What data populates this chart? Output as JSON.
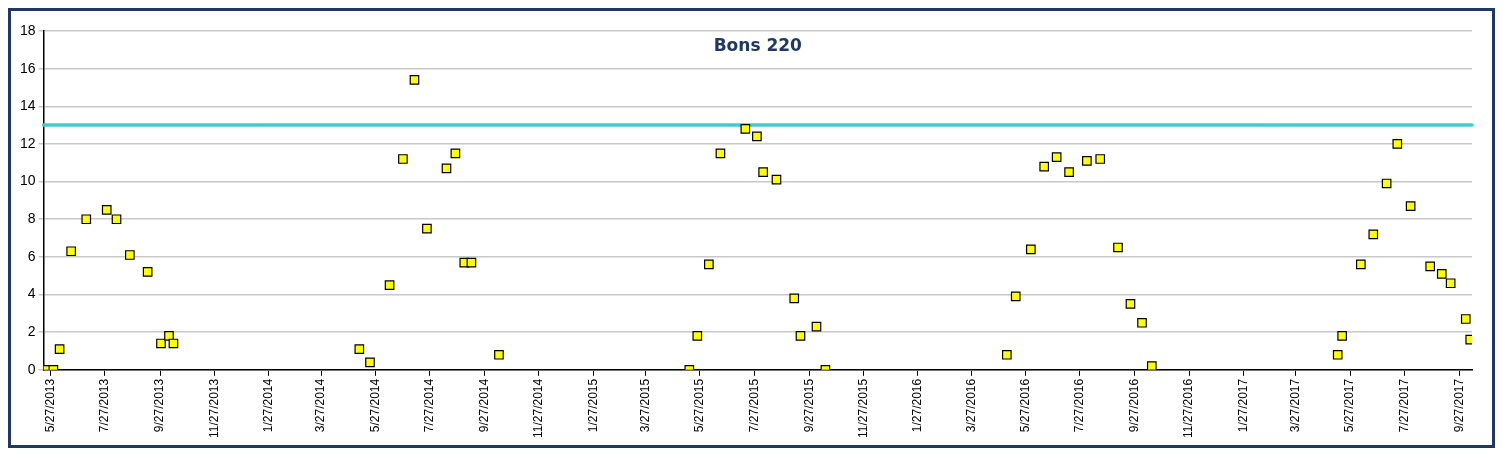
{
  "chart_data": {
    "type": "scatter",
    "title": "Bons 220",
    "x": [
      "2013-05-23",
      "2013-05-30",
      "2013-06-06",
      "2013-06-19",
      "2013-07-06",
      "2013-07-29",
      "2013-08-09",
      "2013-08-24",
      "2013-09-13",
      "2013-09-28",
      "2013-10-07",
      "2013-10-12",
      "2014-05-09",
      "2014-05-21",
      "2014-06-12",
      "2014-06-27",
      "2014-07-10",
      "2014-07-24",
      "2014-08-15",
      "2014-08-25",
      "2014-09-04",
      "2014-09-12",
      "2014-10-13",
      "2015-05-15",
      "2015-05-24",
      "2015-06-06",
      "2015-06-19",
      "2015-07-17",
      "2015-07-30",
      "2015-08-06",
      "2015-08-21",
      "2015-09-10",
      "2015-09-17",
      "2015-10-05",
      "2015-10-15",
      "2016-05-06",
      "2016-05-16",
      "2016-06-02",
      "2016-06-17",
      "2016-07-01",
      "2016-07-15",
      "2016-08-04",
      "2016-08-19",
      "2016-09-08",
      "2016-09-22",
      "2016-10-05",
      "2016-10-16",
      "2017-05-13",
      "2017-05-18",
      "2017-06-08",
      "2017-06-22",
      "2017-07-07",
      "2017-07-19",
      "2017-08-03",
      "2017-08-25",
      "2017-09-07",
      "2017-09-17",
      "2017-10-04",
      "2017-10-09"
    ],
    "series": [
      {
        "color": "#ffff00",
        "values": [
          0,
          0,
          1.1,
          6.3,
          8.0,
          8.5,
          8.0,
          6.1,
          5.2,
          1.4,
          1.8,
          1.4,
          1.1,
          0.4,
          4.5,
          11.2,
          15.4,
          7.5,
          10.7,
          11.5,
          5.7,
          5.7,
          0.8,
          0,
          1.8,
          5.6,
          11.5,
          12.8,
          12.4,
          10.5,
          10.1,
          3.8,
          1.8,
          2.3,
          0,
          0.8,
          3.9,
          6.4,
          10.8,
          11.3,
          10.5,
          11.1,
          11.2,
          6.5,
          3.5,
          2.5,
          0.2,
          0.8,
          1.8,
          5.6,
          7.2,
          9.9,
          12.0,
          8.7,
          5.5,
          5.1,
          4.6,
          2.7,
          1.6
        ]
      }
    ],
    "xlim": [
      "2013-05-19",
      "2017-10-11"
    ],
    "xticks": [
      {
        "value": "2013-05-27",
        "label": "5/27/2013"
      },
      {
        "value": "2013-07-27",
        "label": "7/27/2013"
      },
      {
        "value": "2013-09-27",
        "label": "9/27/2013"
      },
      {
        "value": "2013-11-27",
        "label": "11/27/2013"
      },
      {
        "value": "2014-01-27",
        "label": "1/27/2014"
      },
      {
        "value": "2014-03-27",
        "label": "3/27/2014"
      },
      {
        "value": "2014-05-27",
        "label": "5/27/2014"
      },
      {
        "value": "2014-07-27",
        "label": "7/27/2014"
      },
      {
        "value": "2014-09-27",
        "label": "9/27/2014"
      },
      {
        "value": "2014-11-27",
        "label": "11/27/2014"
      },
      {
        "value": "2015-01-27",
        "label": "1/27/2015"
      },
      {
        "value": "2015-03-27",
        "label": "3/27/2015"
      },
      {
        "value": "2015-05-27",
        "label": "5/27/2015"
      },
      {
        "value": "2015-07-27",
        "label": "7/27/2015"
      },
      {
        "value": "2015-09-27",
        "label": "9/27/2015"
      },
      {
        "value": "2015-11-27",
        "label": "11/27/2015"
      },
      {
        "value": "2016-01-27",
        "label": "1/27/2016"
      },
      {
        "value": "2016-03-27",
        "label": "3/27/2016"
      },
      {
        "value": "2016-05-27",
        "label": "5/27/2016"
      },
      {
        "value": "2016-07-27",
        "label": "7/27/2016"
      },
      {
        "value": "2016-09-27",
        "label": "9/27/2016"
      },
      {
        "value": "2016-11-27",
        "label": "11/27/2016"
      },
      {
        "value": "2017-01-27",
        "label": "1/27/2017"
      },
      {
        "value": "2017-03-27",
        "label": "3/27/2017"
      },
      {
        "value": "2017-05-27",
        "label": "5/27/2017"
      },
      {
        "value": "2017-07-27",
        "label": "7/27/2017"
      },
      {
        "value": "2017-09-27",
        "label": "9/27/2017"
      }
    ],
    "ylim": [
      0,
      18
    ],
    "yticks": [
      0,
      2,
      4,
      6,
      8,
      10,
      12,
      14,
      16,
      18
    ],
    "ref_lines": [
      {
        "axis": "y",
        "value": 13,
        "color": "#3ccfd0"
      }
    ],
    "grid": "y",
    "legend": false,
    "marker": "square"
  }
}
